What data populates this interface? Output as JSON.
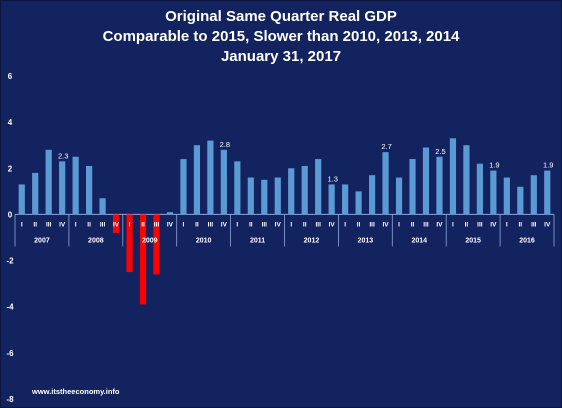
{
  "title_lines": [
    "Original Same Quarter Real GDP",
    "Comparable to 2015, Slower than 2010, 2013, 2014",
    "January 31, 2017"
  ],
  "source": "www.itstheeconomy.info",
  "colors": {
    "background": "#13235f",
    "positive_bar": "#5b9bd5",
    "negative_bar": "#ff0000",
    "text": "#ffffff"
  },
  "chart_data": {
    "type": "bar",
    "title": "Original Same Quarter Real GDP",
    "xlabel": "",
    "ylabel": "",
    "ylim": [
      -8,
      6
    ],
    "y_ticks": [
      6,
      4,
      2,
      0,
      -2,
      -4,
      -6,
      -8
    ],
    "grid": false,
    "legend": "none",
    "years": [
      "2007",
      "2008",
      "2009",
      "2010",
      "2011",
      "2012",
      "2013",
      "2014",
      "2015",
      "2016"
    ],
    "categories": [
      "I",
      "II",
      "III",
      "IV",
      "I",
      "II",
      "III",
      "IV",
      "I",
      "II",
      "III",
      "IV",
      "I",
      "II",
      "III",
      "IV",
      "I",
      "II",
      "III",
      "IV",
      "I",
      "II",
      "III",
      "IV",
      "I",
      "II",
      "III",
      "IV",
      "I",
      "II",
      "III",
      "IV",
      "I",
      "II",
      "III",
      "IV",
      "I",
      "II",
      "III",
      "IV"
    ],
    "values": [
      1.3,
      1.8,
      2.8,
      2.3,
      2.5,
      2.1,
      0.7,
      -0.8,
      -2.5,
      -3.9,
      -2.6,
      0.1,
      2.4,
      3.0,
      3.2,
      2.8,
      2.3,
      1.6,
      1.5,
      1.6,
      2.0,
      2.1,
      2.4,
      1.3,
      1.3,
      1.0,
      1.7,
      2.7,
      1.6,
      2.4,
      2.9,
      2.5,
      3.3,
      3.0,
      2.2,
      1.9,
      1.6,
      1.2,
      1.7,
      1.9
    ],
    "data_labels": [
      {
        "index": 3,
        "text": "2.3"
      },
      {
        "index": 15,
        "text": "2.8"
      },
      {
        "index": 23,
        "text": "1.3"
      },
      {
        "index": 27,
        "text": "2.7"
      },
      {
        "index": 31,
        "text": "2.5"
      },
      {
        "index": 35,
        "text": "1.9"
      },
      {
        "index": 39,
        "text": "1.9"
      }
    ]
  }
}
